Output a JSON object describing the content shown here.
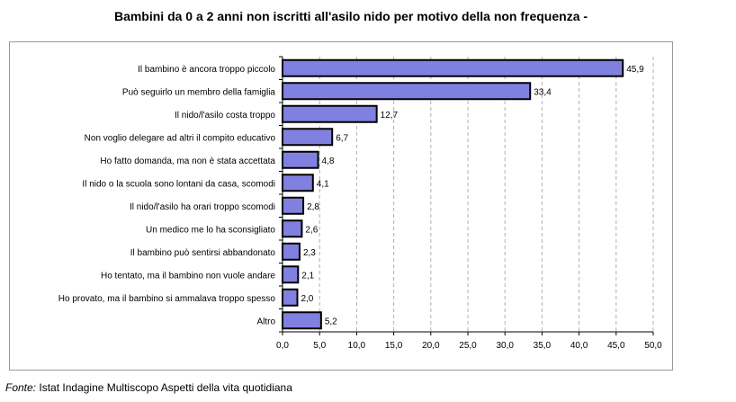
{
  "title": "Bambini da 0 a 2 anni non iscritti all'asilo nido per motivo della non frequenza -",
  "source": {
    "label": "Fonte:",
    "text": "Istat Indagine Multiscopo Aspetti della vita quotidiana"
  },
  "colors": {
    "bar": "#8080e0",
    "bar_border": "#000000",
    "grid": "#b0b0b0"
  },
  "chart_data": {
    "type": "bar",
    "orientation": "horizontal",
    "categories": [
      "Il bambino è ancora troppo piccolo",
      "Può seguirlo un membro della famiglia",
      "Il nido/l'asilo costa troppo",
      "Non voglio delegare ad altri il compito educativo",
      "Ho fatto domanda, ma non è stata accettata",
      "Il nido o la scuola sono lontani da casa, scomodi",
      "Il nido/l'asilo ha orari troppo scomodi",
      "Un medico me lo ha sconsigliato",
      "Il bambino può sentirsi abbandonato",
      "Ho tentato, ma il bambino non vuole andare",
      "Ho provato, ma il bambino si ammalava troppo spesso",
      "Altro"
    ],
    "values": [
      45.9,
      33.4,
      12.7,
      6.7,
      4.8,
      4.1,
      2.8,
      2.6,
      2.3,
      2.1,
      2.0,
      5.2
    ],
    "value_labels": [
      "45,9",
      "33,4",
      "12,7",
      "6,7",
      "4,8",
      "4,1",
      "2,8",
      "2,6",
      "2,3",
      "2,1",
      "2,0",
      "5,2"
    ],
    "xlim": [
      0,
      50
    ],
    "xticks": [
      0,
      5,
      10,
      15,
      20,
      25,
      30,
      35,
      40,
      45,
      50
    ],
    "xtick_labels": [
      "0,0",
      "5,0",
      "10,0",
      "15,0",
      "20,0",
      "25,0",
      "30,0",
      "35,0",
      "40,0",
      "45,0",
      "50,0"
    ],
    "grid": "vertical-dashed",
    "legend": "none"
  }
}
